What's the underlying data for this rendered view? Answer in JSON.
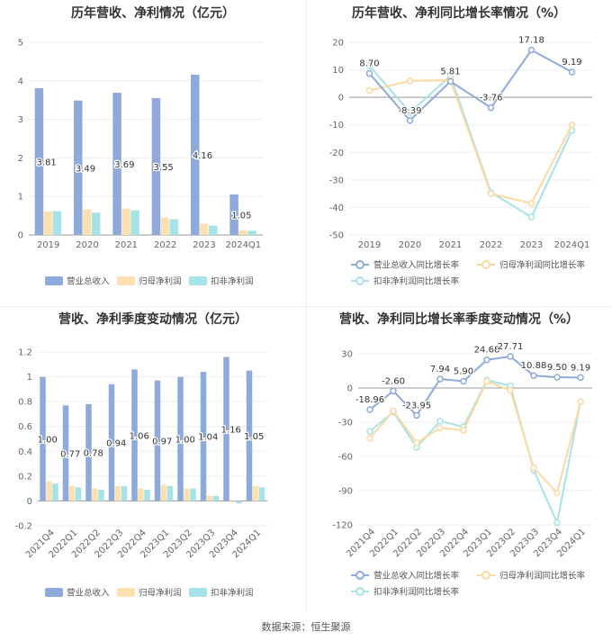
{
  "colors": {
    "revenue": "#8eaadb",
    "net_profit": "#fde0b2",
    "deducted_profit": "#a6e3e7",
    "rev_growth": "#8eaadb",
    "np_growth": "#fdd9a1",
    "dp_growth": "#a6e3e7",
    "axis": "#999999",
    "grid": "#eeeeee"
  },
  "source": "数据来源：恒生聚源",
  "chart_data": [
    {
      "type": "bar",
      "title": "历年营收、净利情况（亿元）",
      "categories": [
        "2019",
        "2020",
        "2021",
        "2022",
        "2023",
        "2024Q1"
      ],
      "ylim": [
        0,
        5
      ],
      "yticks": [
        0,
        1,
        2,
        3,
        4,
        5
      ],
      "value_labels": [
        "3.81",
        "3.49",
        "3.69",
        "3.55",
        "4.16",
        "1.05"
      ],
      "series": [
        {
          "name": "营业总收入",
          "values": [
            3.81,
            3.49,
            3.69,
            3.55,
            4.16,
            1.05
          ]
        },
        {
          "name": "归母净利润",
          "values": [
            0.61,
            0.66,
            0.69,
            0.45,
            0.29,
            0.12
          ]
        },
        {
          "name": "扣非净利润",
          "values": [
            0.62,
            0.58,
            0.64,
            0.41,
            0.24,
            0.11
          ]
        }
      ],
      "legend_position": "bottom"
    },
    {
      "type": "line",
      "title": "历年营收、净利同比增长率情况（%）",
      "categories": [
        "2019",
        "2020",
        "2021",
        "2022",
        "2023",
        "2024Q1"
      ],
      "ylim": [
        -50,
        20
      ],
      "yticks": [
        20,
        10,
        0,
        -10,
        -20,
        -30,
        -40,
        -50
      ],
      "value_labels": [
        "8.70",
        "-8.39",
        "5.81",
        "-3.76",
        "17.18",
        "9.19"
      ],
      "series": [
        {
          "name": "营业总收入同比增长率",
          "values": [
            8.7,
            -8.39,
            5.81,
            -3.76,
            17.18,
            9.19
          ]
        },
        {
          "name": "归母净利润同比增长率",
          "values": [
            2.5,
            6.0,
            6.2,
            -35.0,
            -38.5,
            -10.0
          ]
        },
        {
          "name": "扣非净利润同比增长率",
          "values": [
            11.5,
            -5.5,
            7.8,
            -34.5,
            -43.5,
            -12.0
          ]
        }
      ],
      "legend_position": "bottom"
    },
    {
      "type": "bar",
      "title": "营收、净利季度变动情况（亿元）",
      "categories": [
        "2021Q4",
        "2022Q1",
        "2022Q2",
        "2022Q3",
        "2022Q4",
        "2023Q1",
        "2023Q2",
        "2023Q3",
        "2023Q4",
        "2024Q1"
      ],
      "ylim": [
        -0.2,
        1.2
      ],
      "yticks": [
        1.2,
        1,
        0.8,
        0.6,
        0.4,
        0.2,
        0,
        -0.2
      ],
      "value_labels": [
        "1.00",
        "0.77",
        "0.78",
        "0.94",
        "1.06",
        "0.97",
        "1.00",
        "1.04",
        "1.16",
        "1.05"
      ],
      "series": [
        {
          "name": "营业总收入",
          "values": [
            1.0,
            0.77,
            0.78,
            0.94,
            1.06,
            0.97,
            1.0,
            1.04,
            1.16,
            1.05
          ]
        },
        {
          "name": "归母净利润",
          "values": [
            0.16,
            0.12,
            0.1,
            0.12,
            0.1,
            0.13,
            0.1,
            0.04,
            -0.01,
            0.12
          ]
        },
        {
          "name": "扣非净利润",
          "values": [
            0.14,
            0.11,
            0.09,
            0.12,
            0.09,
            0.12,
            0.1,
            0.04,
            -0.02,
            0.11
          ]
        }
      ],
      "legend_position": "bottom"
    },
    {
      "type": "line",
      "title": "营收、净利同比增长率季度变动情况（%）",
      "categories": [
        "2021Q4",
        "2022Q1",
        "2022Q2",
        "2022Q3",
        "2022Q4",
        "2023Q1",
        "2023Q2",
        "2023Q3",
        "2023Q4",
        "2024Q1"
      ],
      "ylim": [
        -120,
        30
      ],
      "yticks": [
        30,
        0,
        -30,
        -60,
        -90,
        -120
      ],
      "value_labels": [
        "-18.96",
        "-2.60",
        "-23.95",
        "7.94",
        "5.90",
        "24.68",
        "27.71",
        "10.88",
        "9.50",
        "9.19"
      ],
      "series": [
        {
          "name": "营业总收入同比增长率",
          "values": [
            -18.96,
            -2.6,
            -23.95,
            7.94,
            5.9,
            24.68,
            27.71,
            10.88,
            9.5,
            9.19
          ]
        },
        {
          "name": "归母净利润同比增长率",
          "values": [
            -44.0,
            -20.0,
            -48.0,
            -35.0,
            -37.0,
            6.0,
            -2.0,
            -70.0,
            -92.0,
            -12.0
          ]
        },
        {
          "name": "扣非净利润同比增长率",
          "values": [
            -38.0,
            -21.0,
            -52.0,
            -29.0,
            -34.0,
            7.0,
            2.0,
            -72.0,
            -118.0,
            -12.0
          ]
        }
      ],
      "legend_position": "bottom"
    }
  ]
}
